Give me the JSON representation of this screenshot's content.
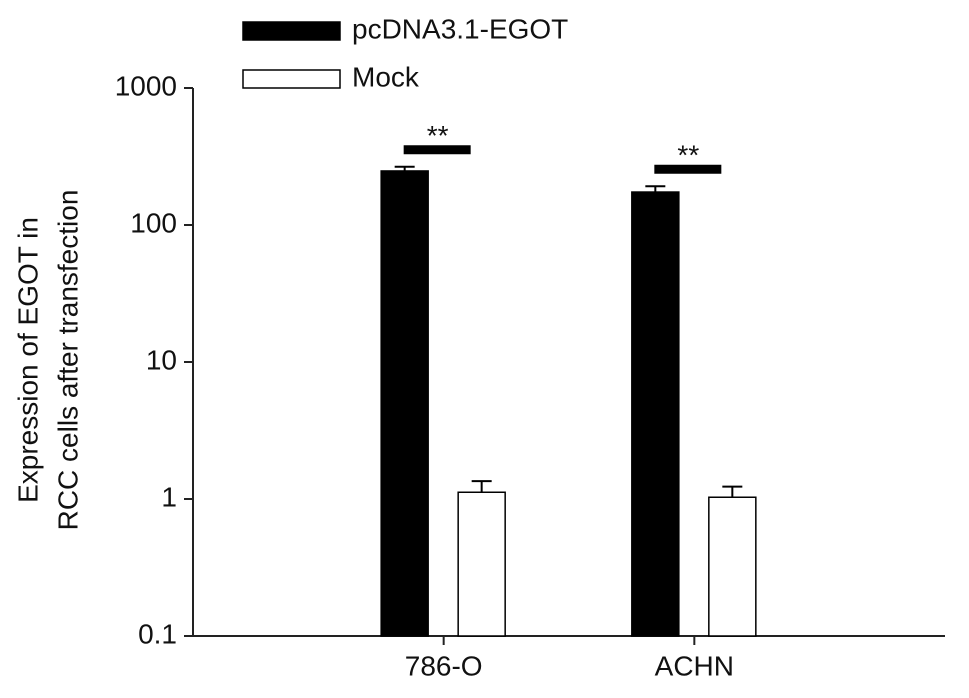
{
  "chart_data": {
    "type": "bar",
    "y_label": [
      "Expression of EGOT in",
      "RCC cells after transfection"
    ],
    "categories": [
      "786-O",
      "ACHN"
    ],
    "series": [
      {
        "name": "pcDNA3.1-EGOT",
        "color": "#000000",
        "values": [
          248,
          174
        ],
        "errors": [
          18,
          18
        ]
      },
      {
        "name": "Mock",
        "color": "#ffffff",
        "values": [
          1.12,
          1.03
        ],
        "errors": [
          0.23,
          0.2
        ]
      }
    ],
    "annotations": [
      "**",
      "**"
    ],
    "ylim": [
      0.1,
      1000
    ],
    "yticks": [
      0.1,
      1,
      10,
      100,
      1000
    ],
    "log_scale": true,
    "grid": false
  }
}
